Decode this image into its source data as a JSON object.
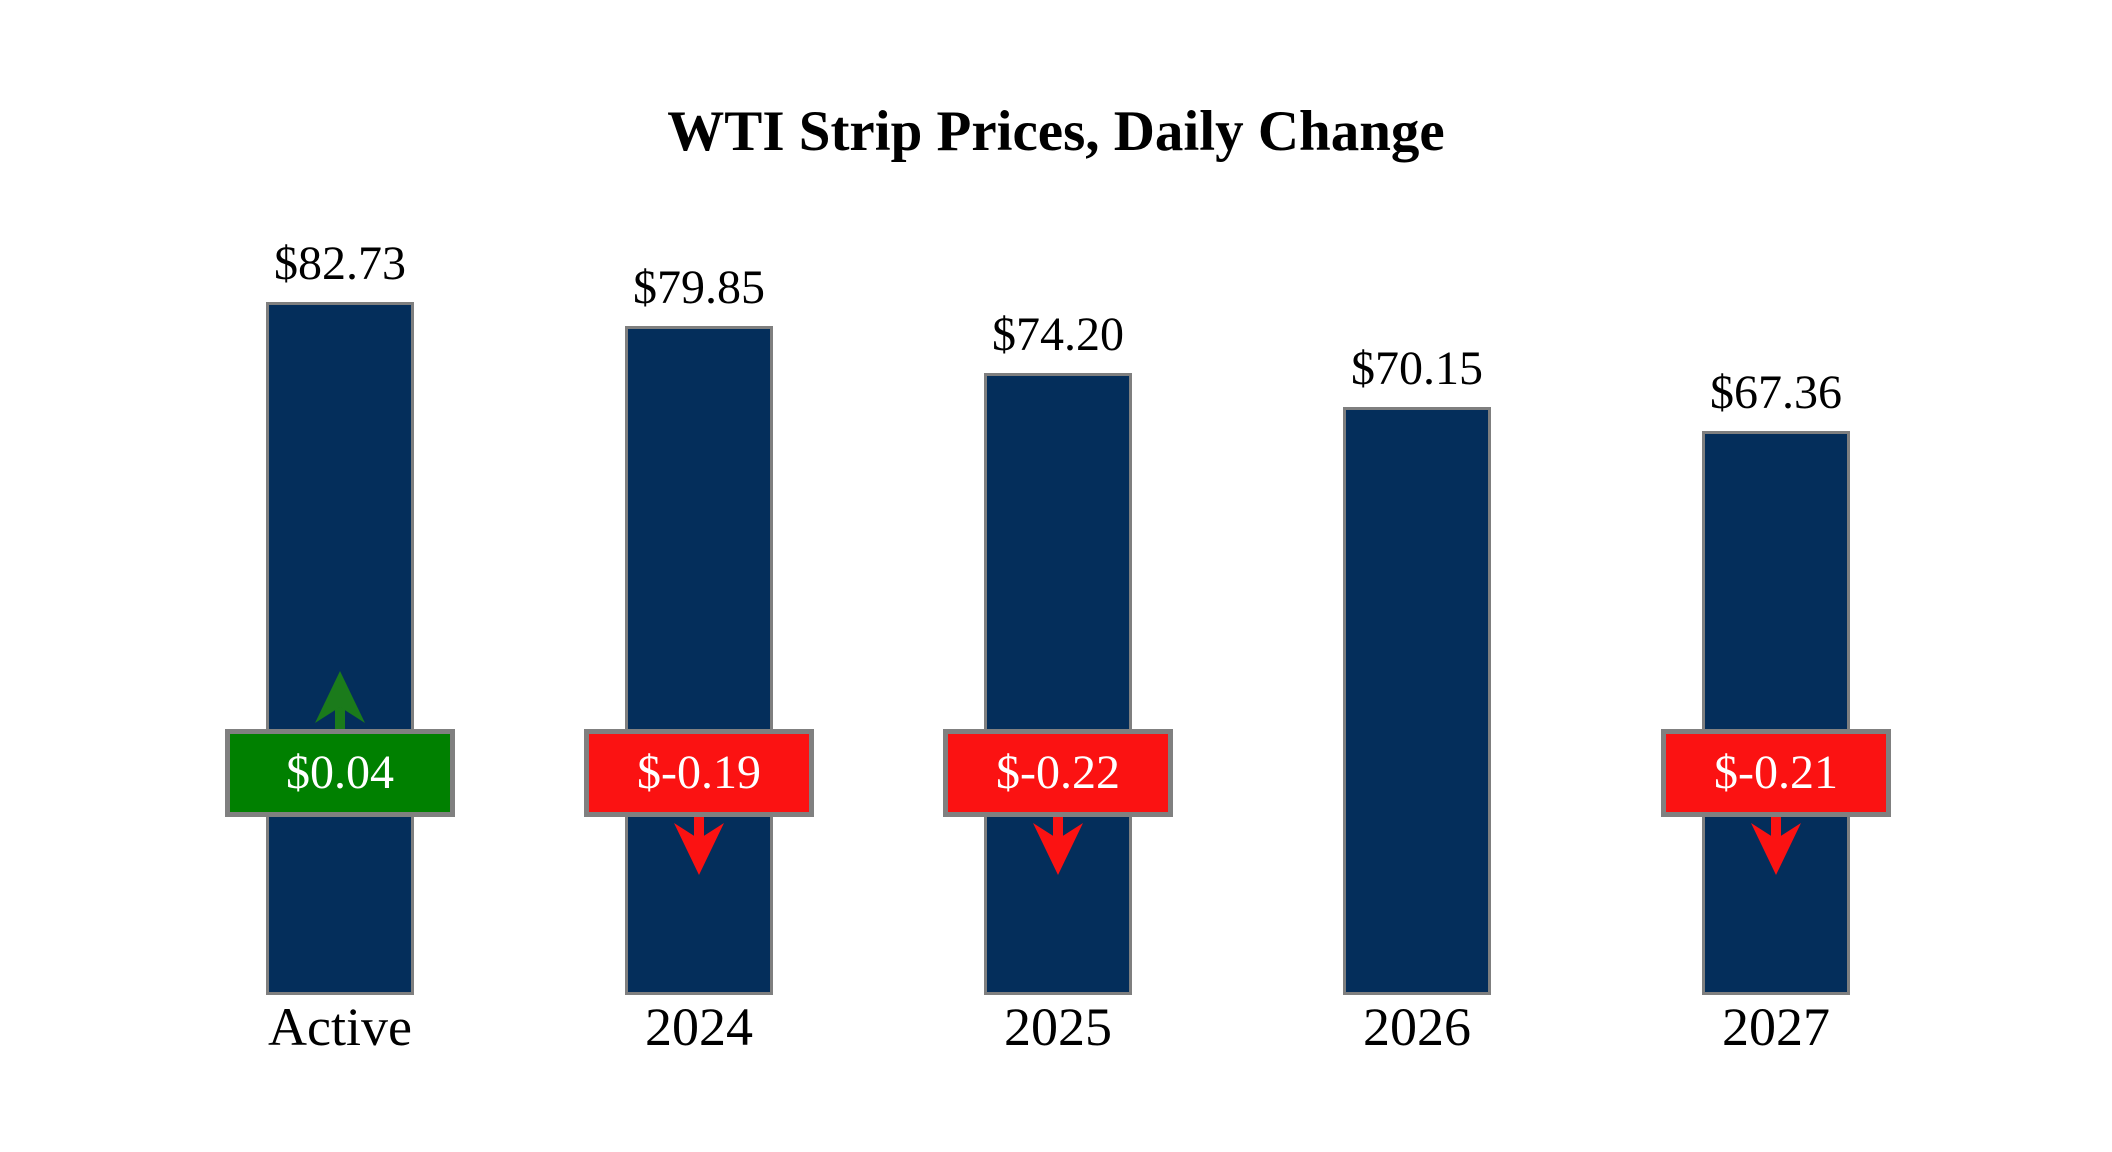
{
  "title": "WTI Strip Prices, Daily Change",
  "chart_data": {
    "type": "bar",
    "title": "WTI Strip Prices, Daily Change",
    "categories": [
      "Active",
      "2024",
      "2025",
      "2026",
      "2027"
    ],
    "values": [
      82.73,
      79.85,
      74.2,
      70.15,
      67.36
    ],
    "value_labels": [
      "$82.73",
      "$79.85",
      "$74.20",
      "$70.15",
      "$67.36"
    ],
    "changes": [
      {
        "label": "$0.04",
        "direction": "up"
      },
      {
        "label": "$-0.19",
        "direction": "down"
      },
      {
        "label": "$-0.22",
        "direction": "down"
      },
      {
        "label": null,
        "direction": "none"
      },
      {
        "label": "$-0.21",
        "direction": "down"
      }
    ],
    "xlabel": "",
    "ylabel": "",
    "ylim": [
      0,
      85
    ],
    "grid": false,
    "legend": false,
    "colors": {
      "background": "#FFFFFF",
      "bar_fill": "#042E5B",
      "bar_border": "#7F7F7F",
      "up_badge": "#008000",
      "up_arrow": "#1B7B1B",
      "down_badge": "#FB1212",
      "down_arrow": "#FB1212",
      "badge_border": "#808080",
      "badge_text": "#FFFFFF",
      "label_text": "#000000"
    }
  }
}
